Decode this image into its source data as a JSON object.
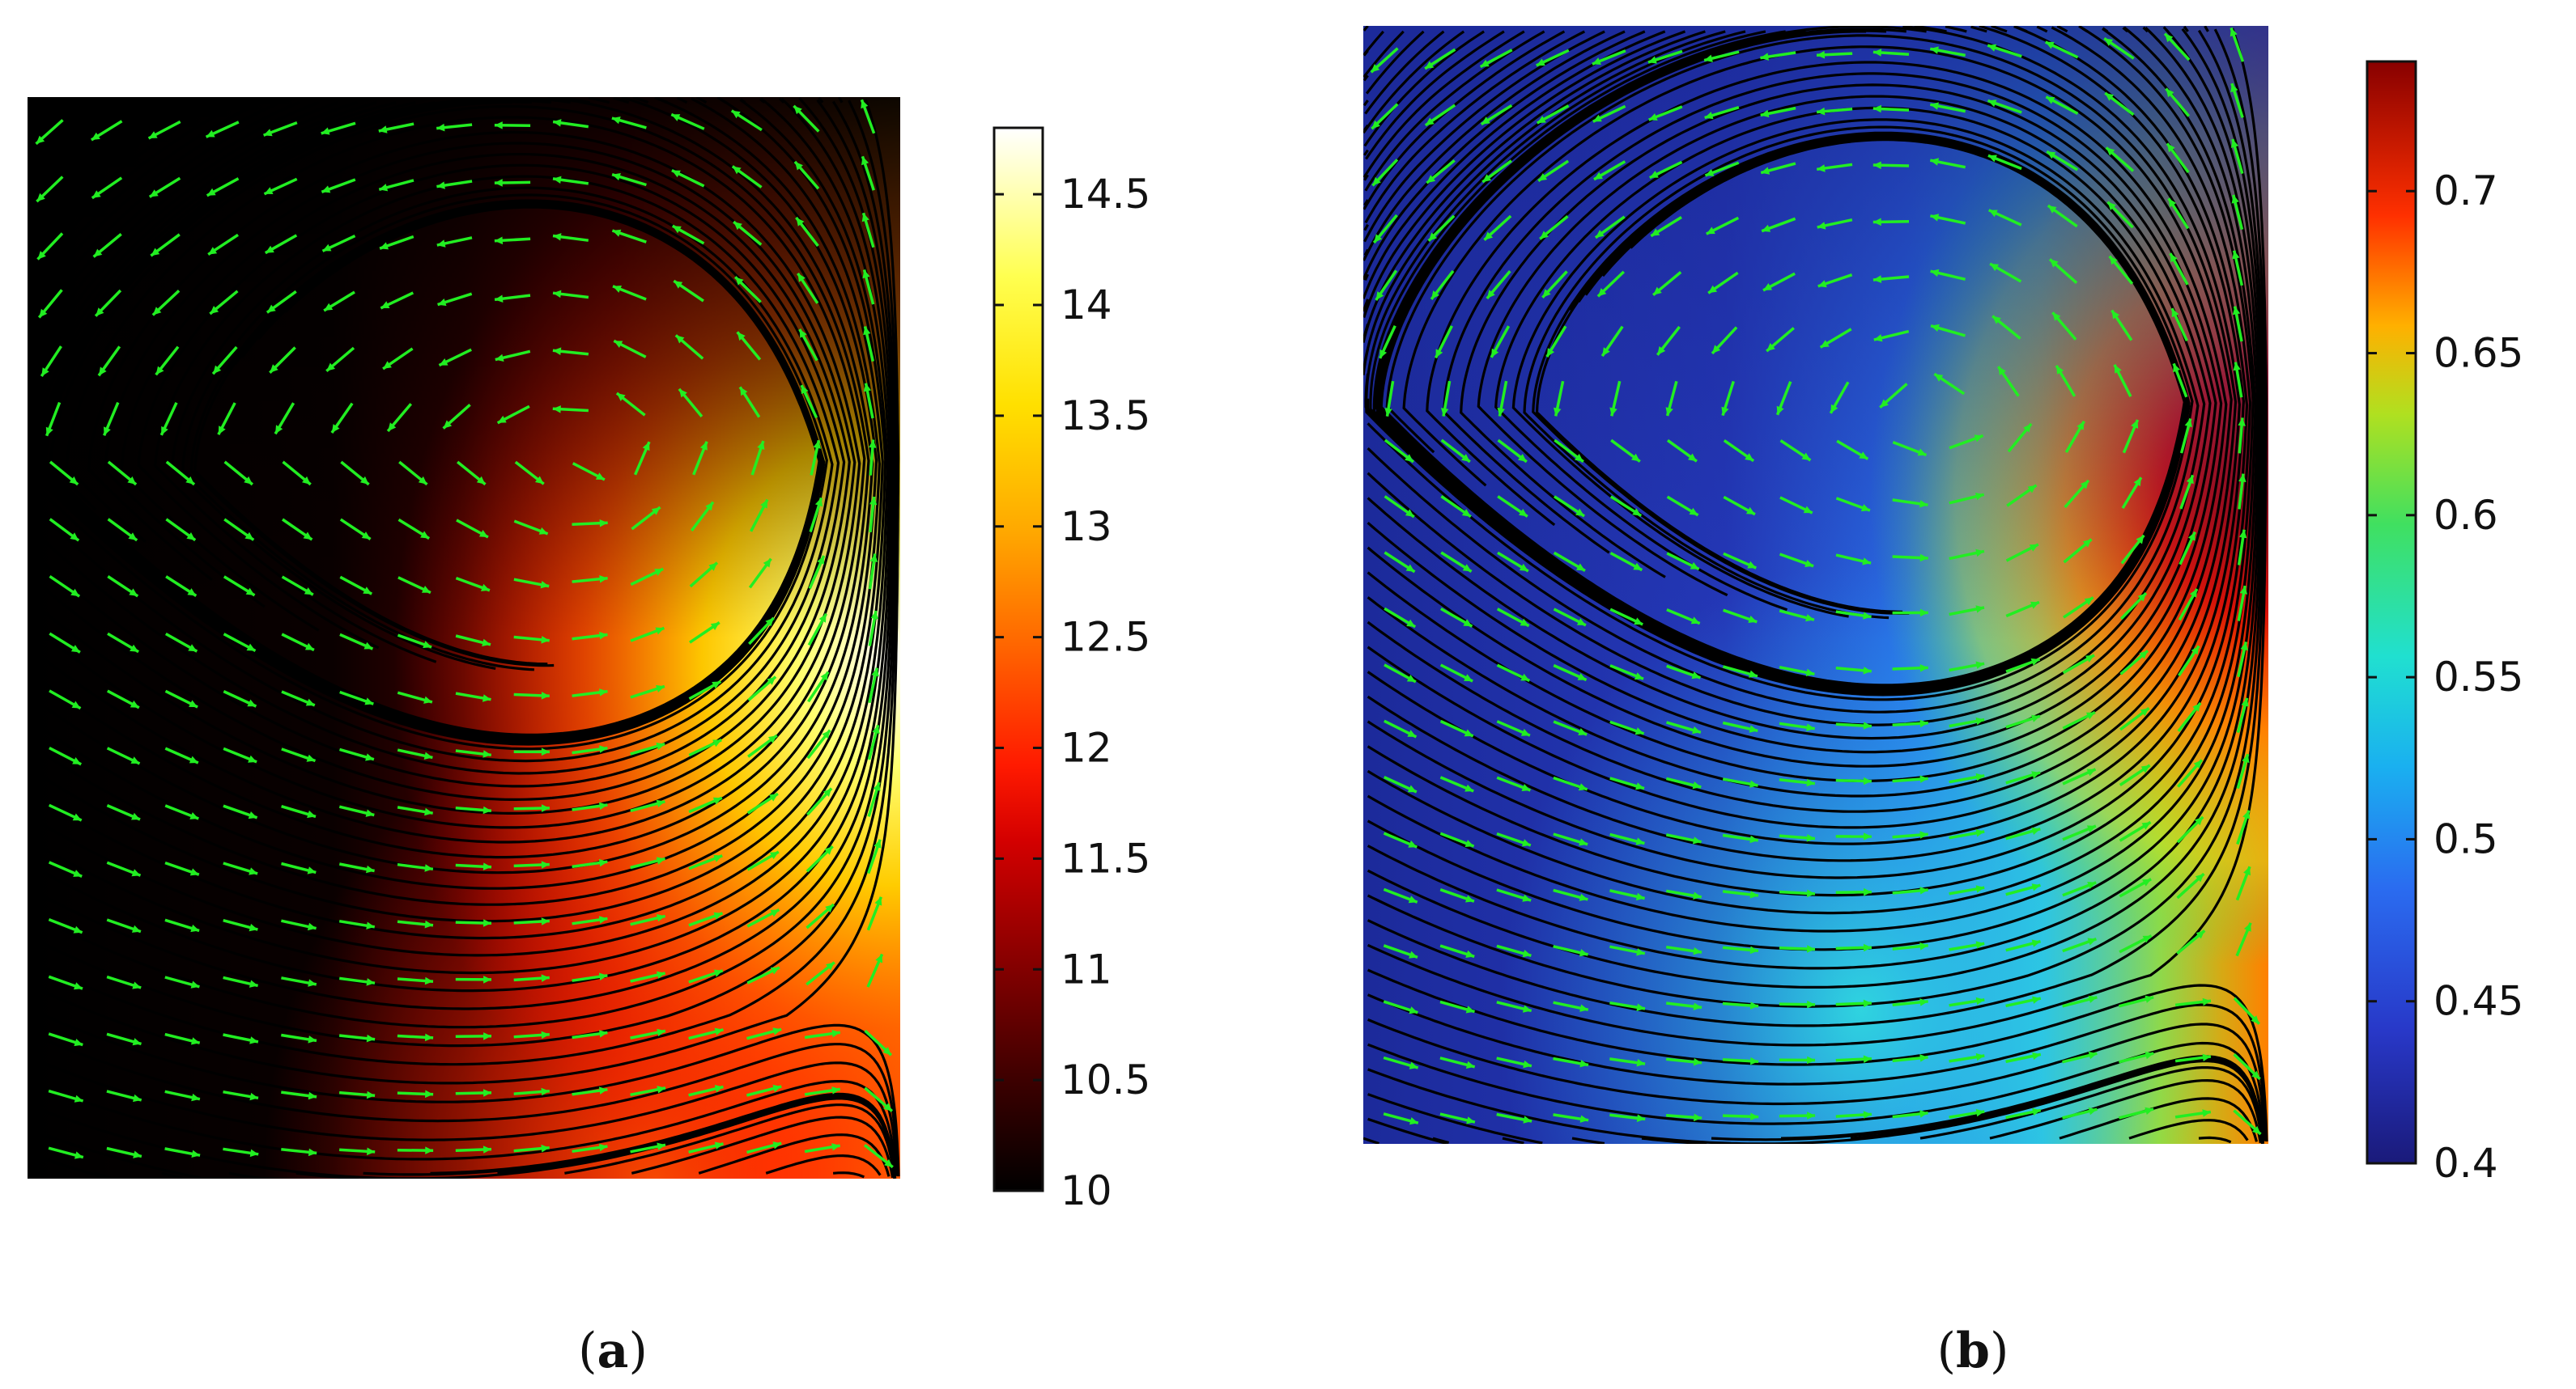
{
  "chart_data": [
    {
      "type": "heatmap",
      "panel_label": "a",
      "plot_kind": "surface with streamlines and arrow field",
      "colormap": "heat (black-red-orange-yellow-white)",
      "colorbar": {
        "range": [
          10,
          14.8
        ],
        "ticks": [
          10,
          10.5,
          11,
          11.5,
          12,
          12.5,
          13,
          13.5,
          14,
          14.5
        ],
        "tick_labels": [
          "10",
          "10.5",
          "11",
          "11.5",
          "12",
          "12.5",
          "13",
          "13.5",
          "14",
          "14.5"
        ],
        "placement": "right"
      },
      "vortex_center": [
        0.65,
        0.66
      ],
      "high_region": "right edge, lower-right",
      "low_region": "upper-left and left side",
      "streamline_color": "#000000",
      "arrow_color": "#22ee22"
    },
    {
      "type": "heatmap",
      "panel_label": "b",
      "plot_kind": "surface with streamlines and arrow field",
      "colormap": "jet (blue-cyan-green-yellow-red)",
      "colorbar": {
        "range": [
          0.4,
          0.74
        ],
        "ticks": [
          0.4,
          0.45,
          0.5,
          0.55,
          0.6,
          0.65,
          0.7
        ],
        "tick_labels": [
          "0.4",
          "0.45",
          "0.5",
          "0.55",
          "0.6",
          "0.65",
          "0.7"
        ],
        "placement": "right"
      },
      "vortex_center": [
        0.65,
        0.66
      ],
      "high_region": "right side, upper-right band",
      "low_region": "left side and top-left",
      "streamline_color": "#000000",
      "arrow_color": "#22ee22"
    }
  ]
}
